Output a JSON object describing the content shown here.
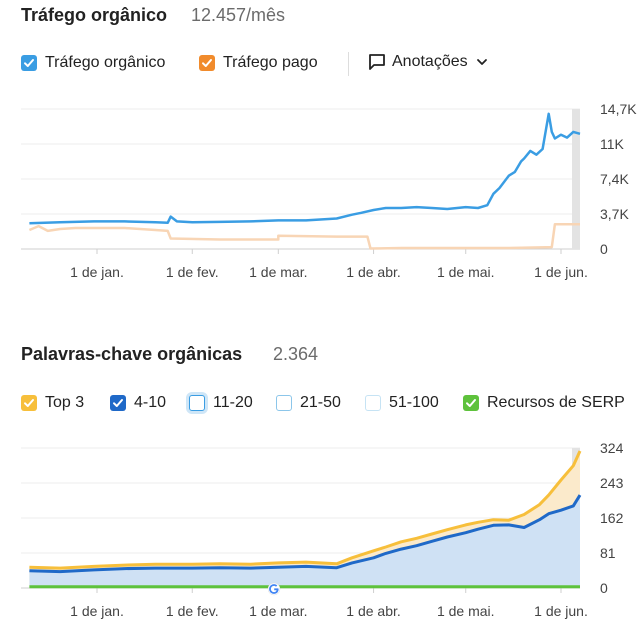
{
  "traffic": {
    "title": "Tráfego orgânico",
    "value": "12.457/mês",
    "legend": {
      "organic": {
        "label": "Tráfego orgânico",
        "color": "#3a9de3",
        "checked": true
      },
      "paid": {
        "label": "Tráfego pago",
        "color": "#f18b2c",
        "checked": true
      },
      "annotations": {
        "label": "Anotações",
        "icon": "comment-icon",
        "chevron": "chevron-down-icon"
      }
    }
  },
  "keywords": {
    "title": "Palavras-chave orgânicas",
    "value": "2.364",
    "legend": [
      {
        "label": "Top 3",
        "color": "#f7bf3b",
        "checked": true
      },
      {
        "label": "4-10",
        "color": "#1f69c8",
        "checked": true
      },
      {
        "label": "11-20",
        "color": "#8cc6ea",
        "checked": false
      },
      {
        "label": "21-50",
        "color": "#8cc6ea",
        "checked": false
      },
      {
        "label": "51-100",
        "color": "#b6dcf1",
        "checked": false
      },
      {
        "label": "Recursos de SERP",
        "color": "#5ec23c",
        "checked": true
      }
    ]
  },
  "chart_data": [
    {
      "type": "line",
      "x_tick_labels": [
        "1 de jan.",
        "1 de fev.",
        "1 de mar.",
        "1 de abr.",
        "1 de mai.",
        "1 de jun."
      ],
      "y_tick_labels": [
        "14,7K",
        "11K",
        "7,4K",
        "3,7K",
        "0"
      ],
      "ylim": [
        0,
        14700
      ],
      "grid": true,
      "series": [
        {
          "name": "Tráfego orgânico",
          "color": "#3a9de3",
          "x": [
            "2024-12-10",
            "2024-12-20",
            "2024-12-31",
            "2025-01-10",
            "2025-01-20",
            "2025-01-24",
            "2025-01-25",
            "2025-01-27",
            "2025-02-01",
            "2025-02-10",
            "2025-02-20",
            "2025-03-01",
            "2025-03-10",
            "2025-03-20",
            "2025-03-25",
            "2025-03-28",
            "2025-04-01",
            "2025-04-05",
            "2025-04-10",
            "2025-04-15",
            "2025-04-20",
            "2025-04-25",
            "2025-05-01",
            "2025-05-05",
            "2025-05-08",
            "2025-05-10",
            "2025-05-12",
            "2025-05-15",
            "2025-05-17",
            "2025-05-19",
            "2025-05-20",
            "2025-05-22",
            "2025-05-24",
            "2025-05-26",
            "2025-05-28",
            "2025-05-29",
            "2025-05-30",
            "2025-06-01",
            "2025-06-03",
            "2025-06-05",
            "2025-06-08"
          ],
          "values": [
            2700,
            2800,
            2900,
            2900,
            2800,
            2750,
            3400,
            2900,
            2800,
            2850,
            2900,
            3000,
            3000,
            3200,
            3600,
            3800,
            4100,
            4300,
            4300,
            4400,
            4300,
            4200,
            4400,
            4300,
            4600,
            5800,
            6400,
            7700,
            8100,
            9200,
            9500,
            10300,
            9900,
            10500,
            14200,
            12300,
            11600,
            12000,
            11700,
            12300,
            12100
          ]
        },
        {
          "name": "Tráfego pago",
          "color": "#f8d5b5",
          "x": [
            "2024-12-10",
            "2024-12-13",
            "2024-12-16",
            "2024-12-20",
            "2024-12-25",
            "2025-01-10",
            "2025-01-20",
            "2025-01-24",
            "2025-01-25",
            "2025-02-10",
            "2025-03-01",
            "2025-03-01",
            "2025-03-20",
            "2025-03-30",
            "2025-03-31",
            "2025-04-10",
            "2025-05-01",
            "2025-05-15",
            "2025-05-29",
            "2025-05-30",
            "2025-06-08"
          ],
          "values": [
            2000,
            2400,
            1900,
            2100,
            2200,
            2200,
            2000,
            1900,
            1100,
            1000,
            1000,
            1400,
            1300,
            1300,
            50,
            100,
            100,
            100,
            200,
            2600,
            2600
          ]
        }
      ]
    },
    {
      "type": "area",
      "x_tick_labels": [
        "1 de jan.",
        "1 de fev.",
        "1 de mar.",
        "1 de abr.",
        "1 de mai.",
        "1 de jun."
      ],
      "y_tick_labels": [
        "324",
        "243",
        "162",
        "81",
        "0"
      ],
      "ylim": [
        0,
        324
      ],
      "grid": true,
      "series": [
        {
          "name": "Top 3",
          "color": "#f7bf3b",
          "x": [
            "2024-12-10",
            "2024-12-20",
            "2024-12-31",
            "2025-01-10",
            "2025-01-20",
            "2025-02-01",
            "2025-02-10",
            "2025-02-20",
            "2025-03-01",
            "2025-03-10",
            "2025-03-20",
            "2025-03-25",
            "2025-04-01",
            "2025-04-05",
            "2025-04-10",
            "2025-04-15",
            "2025-04-20",
            "2025-04-25",
            "2025-05-01",
            "2025-05-05",
            "2025-05-10",
            "2025-05-15",
            "2025-05-20",
            "2025-05-25",
            "2025-05-28",
            "2025-06-01",
            "2025-06-05",
            "2025-06-08"
          ],
          "values": [
            48,
            46,
            50,
            53,
            55,
            55,
            56,
            55,
            58,
            60,
            56,
            70,
            86,
            95,
            107,
            115,
            125,
            135,
            146,
            152,
            158,
            157,
            170,
            193,
            215,
            250,
            283,
            317
          ]
        },
        {
          "name": "4-10",
          "color": "#1f69c8",
          "x": [
            "2024-12-10",
            "2024-12-20",
            "2024-12-31",
            "2025-01-10",
            "2025-01-20",
            "2025-02-01",
            "2025-02-10",
            "2025-02-20",
            "2025-03-01",
            "2025-03-10",
            "2025-03-20",
            "2025-03-25",
            "2025-04-01",
            "2025-04-05",
            "2025-04-10",
            "2025-04-15",
            "2025-04-20",
            "2025-04-25",
            "2025-05-01",
            "2025-05-05",
            "2025-05-10",
            "2025-05-15",
            "2025-05-20",
            "2025-05-25",
            "2025-05-28",
            "2025-06-01",
            "2025-06-05",
            "2025-06-08"
          ],
          "values": [
            40,
            38,
            42,
            45,
            46,
            46,
            47,
            46,
            48,
            50,
            47,
            58,
            70,
            80,
            90,
            98,
            108,
            118,
            128,
            136,
            145,
            146,
            140,
            158,
            172,
            180,
            190,
            215
          ]
        },
        {
          "name": "Recursos de SERP",
          "color": "#5ec23c",
          "x": [
            "2024-12-10",
            "2025-06-08"
          ],
          "values": [
            3,
            3
          ]
        }
      ]
    }
  ]
}
